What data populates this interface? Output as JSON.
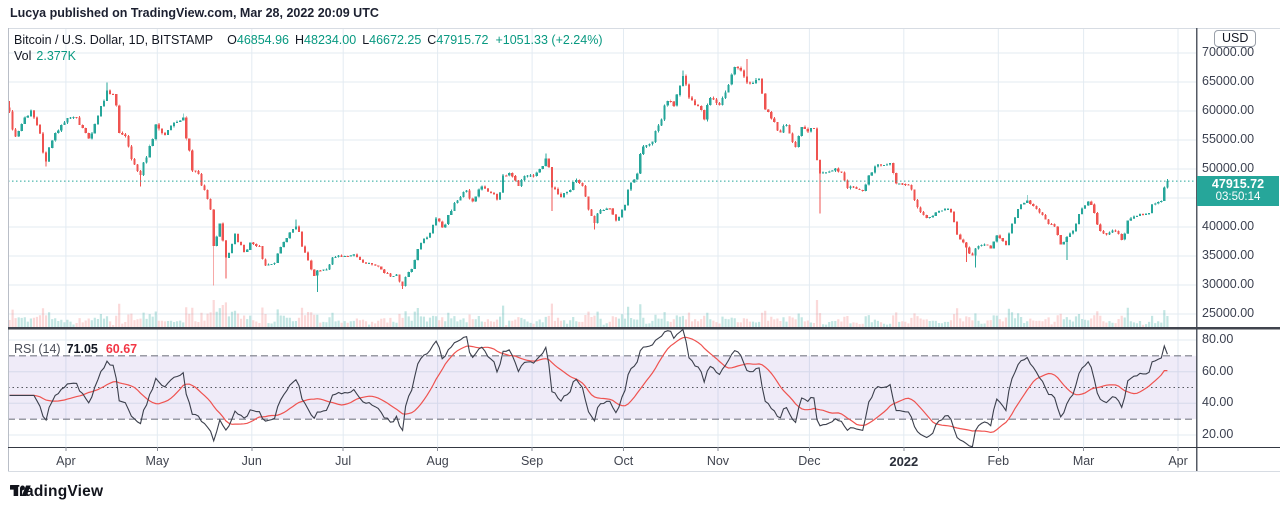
{
  "publish_note": "Lucya published on TradingView.com, Mar 28, 2022 20:09 UTC",
  "legend": {
    "symbol_title": "Bitcoin / U.S. Dollar, 1D, BITSTAMP",
    "open_label": "O",
    "open_value": "46854.96",
    "high_label": "H",
    "high_value": "48234.00",
    "low_label": "L",
    "low_value": "46672.25",
    "close_label": "C",
    "close_value": "47915.72",
    "change": "+1051.33 (+2.24%)",
    "volume_label": "Vol",
    "volume_value": "2.377K"
  },
  "rsi_legend": {
    "title": "RSI",
    "params": "(14)",
    "value": "71.05",
    "ma_value": "60.67"
  },
  "price_axis": {
    "currency_button": "USD",
    "badge_price": "47915.72",
    "badge_countdown": "03:50:14"
  },
  "logo_text": "TradingView",
  "colors": {
    "up": "#26a69a",
    "down": "#ef5350",
    "vol_up": "rgba(38,166,154,0.28)",
    "vol_down": "rgba(239,83,80,0.22)",
    "grid": "#e3ebf2",
    "rsi_line": "#3b3f4c",
    "rsi_ma": "#ef5350",
    "rsi_band": "rgba(126,87,194,0.12)",
    "level_line": "#787b86",
    "price_line": "#26a69a",
    "badge": "#26a69a"
  },
  "chart_data": {
    "type": "candlestick",
    "symbol": "BTCUSD",
    "interval": "1D",
    "exchange": "BITSTAMP",
    "title": "Bitcoin / U.S. Dollar",
    "current": {
      "price": 47915.72,
      "change": 1051.33,
      "change_pct": 2.24,
      "countdown": "03:50:14"
    },
    "last_candle": {
      "o": 46854.96,
      "h": 48234.0,
      "l": 46672.25,
      "c": 47915.72
    },
    "volume_last": 2377,
    "price_grid": {
      "min": 25000,
      "max": 70000,
      "step": 5000
    },
    "price_ticks": [
      {
        "v": 70000,
        "label": "70000.00"
      },
      {
        "v": 65000,
        "label": "65000.00"
      },
      {
        "v": 60000,
        "label": "60000.00"
      },
      {
        "v": 55000,
        "label": "55000.00"
      },
      {
        "v": 50000,
        "label": "50000.00"
      },
      {
        "v": 40000,
        "label": "40000.00"
      },
      {
        "v": 35000,
        "label": "35000.00"
      },
      {
        "v": 30000,
        "label": "30000.00"
      },
      {
        "v": 25000,
        "label": "25000.00"
      }
    ],
    "rsi_ticks": [
      {
        "v": 80,
        "label": "80.00"
      },
      {
        "v": 60,
        "label": "60.00"
      },
      {
        "v": 40,
        "label": "40.00"
      },
      {
        "v": 20,
        "label": "20.00"
      }
    ],
    "time_ticks": [
      {
        "label": "Apr",
        "day": 19
      },
      {
        "label": "May",
        "day": 49
      },
      {
        "label": "Jun",
        "day": 80
      },
      {
        "label": "Jul",
        "day": 110
      },
      {
        "label": "Aug",
        "day": 141
      },
      {
        "label": "Sep",
        "day": 172
      },
      {
        "label": "Oct",
        "day": 202
      },
      {
        "label": "Nov",
        "day": 233
      },
      {
        "label": "Dec",
        "day": 263
      },
      {
        "label": "2022",
        "day": 294,
        "bold": true
      },
      {
        "label": "Feb",
        "day": 325
      },
      {
        "label": "Mar",
        "day": 353
      },
      {
        "label": "Apr",
        "day": 384
      }
    ],
    "rsi": {
      "length": 14,
      "last": 71.05,
      "ma_last": 60.67,
      "upper": 70,
      "middle": 50,
      "lower": 30
    },
    "anchors": [
      [
        0,
        59900,
        61700,
        0
      ],
      [
        2,
        55600,
        0,
        0
      ],
      [
        5,
        58900,
        0,
        0
      ],
      [
        7,
        60100,
        0,
        0
      ],
      [
        9,
        57600,
        0,
        0
      ],
      [
        12,
        51300,
        0,
        50400
      ],
      [
        14,
        54900,
        0,
        0
      ],
      [
        17,
        57600,
        0,
        0
      ],
      [
        19,
        58800,
        0,
        0
      ],
      [
        22,
        58900,
        0,
        0
      ],
      [
        24,
        57100,
        0,
        0
      ],
      [
        26,
        55300,
        0,
        0
      ],
      [
        29,
        59100,
        0,
        0
      ],
      [
        32,
        63500,
        64900,
        0
      ],
      [
        34,
        62900,
        0,
        0
      ],
      [
        36,
        56200,
        0,
        0
      ],
      [
        38,
        55700,
        0,
        0
      ],
      [
        40,
        51700,
        0,
        0
      ],
      [
        43,
        49000,
        0,
        46950
      ],
      [
        46,
        54000,
        0,
        0
      ],
      [
        48,
        57700,
        0,
        0
      ],
      [
        51,
        55900,
        0,
        0
      ],
      [
        53,
        57400,
        0,
        0
      ],
      [
        57,
        58900,
        59600,
        0
      ],
      [
        59,
        53200,
        0,
        0
      ],
      [
        60,
        49700,
        0,
        0
      ],
      [
        62,
        49100,
        0,
        0
      ],
      [
        64,
        46400,
        0,
        0
      ],
      [
        66,
        43000,
        0,
        0
      ],
      [
        67,
        36700,
        0,
        29900
      ],
      [
        69,
        40600,
        0,
        0
      ],
      [
        71,
        34700,
        0,
        31100
      ],
      [
        74,
        38800,
        0,
        0
      ],
      [
        77,
        35700,
        0,
        0
      ],
      [
        79,
        37300,
        0,
        0
      ],
      [
        82,
        36700,
        0,
        0
      ],
      [
        84,
        33400,
        0,
        0
      ],
      [
        87,
        33800,
        0,
        0
      ],
      [
        90,
        37400,
        0,
        0
      ],
      [
        94,
        40100,
        41300,
        0
      ],
      [
        97,
        35600,
        0,
        0
      ],
      [
        100,
        31600,
        0,
        0
      ],
      [
        101,
        32500,
        0,
        28800
      ],
      [
        104,
        32700,
        0,
        0
      ],
      [
        106,
        34700,
        0,
        0
      ],
      [
        110,
        35000,
        0,
        0
      ],
      [
        113,
        35300,
        0,
        0
      ],
      [
        116,
        33900,
        0,
        0
      ],
      [
        119,
        33500,
        0,
        0
      ],
      [
        122,
        32700,
        0,
        0
      ],
      [
        125,
        31500,
        0,
        0
      ],
      [
        127,
        31800,
        0,
        0
      ],
      [
        129,
        29800,
        0,
        29300
      ],
      [
        131,
        32200,
        0,
        0
      ],
      [
        133,
        34300,
        0,
        0
      ],
      [
        135,
        37200,
        0,
        0
      ],
      [
        137,
        38200,
        0,
        0
      ],
      [
        140,
        41500,
        0,
        0
      ],
      [
        142,
        39900,
        0,
        0
      ],
      [
        145,
        42800,
        0,
        0
      ],
      [
        147,
        44600,
        0,
        0
      ],
      [
        150,
        46300,
        0,
        0
      ],
      [
        152,
        44400,
        0,
        0
      ],
      [
        155,
        47000,
        0,
        0
      ],
      [
        158,
        45900,
        0,
        0
      ],
      [
        160,
        44700,
        0,
        0
      ],
      [
        162,
        48900,
        0,
        0
      ],
      [
        164,
        49300,
        0,
        0
      ],
      [
        167,
        47100,
        0,
        0
      ],
      [
        169,
        48800,
        0,
        0
      ],
      [
        172,
        48800,
        0,
        0
      ],
      [
        174,
        50000,
        0,
        0
      ],
      [
        176,
        51800,
        52700,
        0
      ],
      [
        178,
        46800,
        0,
        42800
      ],
      [
        181,
        45200,
        0,
        0
      ],
      [
        183,
        46000,
        0,
        0
      ],
      [
        186,
        48100,
        0,
        0
      ],
      [
        188,
        47100,
        0,
        0
      ],
      [
        190,
        43000,
        0,
        0
      ],
      [
        192,
        40700,
        0,
        39600
      ],
      [
        194,
        42900,
        0,
        0
      ],
      [
        197,
        43200,
        0,
        0
      ],
      [
        199,
        41100,
        0,
        0
      ],
      [
        202,
        43800,
        0,
        0
      ],
      [
        204,
        47700,
        0,
        0
      ],
      [
        206,
        49200,
        0,
        0
      ],
      [
        208,
        53900,
        0,
        0
      ],
      [
        211,
        54700,
        0,
        0
      ],
      [
        213,
        57500,
        0,
        0
      ],
      [
        216,
        61700,
        0,
        0
      ],
      [
        218,
        60900,
        0,
        0
      ],
      [
        221,
        66000,
        67000,
        0
      ],
      [
        223,
        62300,
        0,
        0
      ],
      [
        226,
        60900,
        0,
        0
      ],
      [
        228,
        58500,
        0,
        0
      ],
      [
        230,
        62250,
        0,
        0
      ],
      [
        233,
        61000,
        0,
        0
      ],
      [
        235,
        63200,
        0,
        0
      ],
      [
        238,
        67550,
        0,
        0
      ],
      [
        240,
        66950,
        0,
        0
      ],
      [
        242,
        64950,
        69000,
        0
      ],
      [
        244,
        64800,
        0,
        0
      ],
      [
        246,
        65500,
        0,
        0
      ],
      [
        248,
        60300,
        0,
        0
      ],
      [
        251,
        58100,
        0,
        0
      ],
      [
        253,
        56300,
        0,
        0
      ],
      [
        255,
        57600,
        0,
        0
      ],
      [
        258,
        53800,
        0,
        0
      ],
      [
        260,
        57200,
        0,
        0
      ],
      [
        262,
        56500,
        0,
        0
      ],
      [
        264,
        57000,
        0,
        0
      ],
      [
        266,
        49200,
        0,
        42350
      ],
      [
        268,
        49400,
        0,
        0
      ],
      [
        271,
        50100,
        0,
        0
      ],
      [
        273,
        49400,
        0,
        0
      ],
      [
        275,
        46700,
        0,
        0
      ],
      [
        277,
        46900,
        0,
        0
      ],
      [
        280,
        46200,
        0,
        0
      ],
      [
        282,
        48900,
        0,
        0
      ],
      [
        285,
        50800,
        0,
        0
      ],
      [
        287,
        50700,
        0,
        0
      ],
      [
        289,
        51000,
        0,
        0
      ],
      [
        291,
        47500,
        0,
        0
      ],
      [
        294,
        47300,
        0,
        0
      ],
      [
        296,
        46500,
        0,
        0
      ],
      [
        298,
        43400,
        0,
        0
      ],
      [
        301,
        41600,
        0,
        0
      ],
      [
        303,
        41900,
        0,
        0
      ],
      [
        305,
        42750,
        0,
        0
      ],
      [
        307,
        43100,
        0,
        0
      ],
      [
        309,
        42600,
        0,
        0
      ],
      [
        311,
        38700,
        0,
        0
      ],
      [
        314,
        36500,
        0,
        34000
      ],
      [
        316,
        35100,
        0,
        0
      ],
      [
        317,
        36300,
        0,
        33000
      ],
      [
        320,
        37000,
        0,
        0
      ],
      [
        322,
        36300,
        0,
        0
      ],
      [
        324,
        38500,
        0,
        0
      ],
      [
        327,
        36900,
        0,
        0
      ],
      [
        330,
        41600,
        0,
        0
      ],
      [
        332,
        43900,
        0,
        0
      ],
      [
        334,
        44600,
        45500,
        0
      ],
      [
        336,
        43600,
        0,
        0
      ],
      [
        338,
        42500,
        0,
        0
      ],
      [
        341,
        40500,
        0,
        0
      ],
      [
        343,
        40100,
        0,
        0
      ],
      [
        345,
        37000,
        0,
        0
      ],
      [
        347,
        38300,
        0,
        34300
      ],
      [
        349,
        39300,
        0,
        0
      ],
      [
        352,
        43200,
        0,
        0
      ],
      [
        354,
        44400,
        0,
        0
      ],
      [
        356,
        42400,
        0,
        0
      ],
      [
        358,
        39300,
        0,
        0
      ],
      [
        360,
        38700,
        0,
        0
      ],
      [
        362,
        39400,
        0,
        0
      ],
      [
        364,
        38800,
        0,
        0
      ],
      [
        365,
        37800,
        0,
        0
      ],
      [
        367,
        41100,
        0,
        0
      ],
      [
        370,
        41900,
        0,
        0
      ],
      [
        372,
        42200,
        0,
        0
      ],
      [
        374,
        42400,
        0,
        0
      ],
      [
        375,
        43900,
        0,
        0
      ],
      [
        377,
        44300,
        0,
        0
      ],
      [
        378,
        44500,
        0,
        0
      ],
      [
        379,
        46850,
        0,
        0
      ],
      [
        380,
        47915.72,
        48234,
        46672.25
      ]
    ]
  }
}
